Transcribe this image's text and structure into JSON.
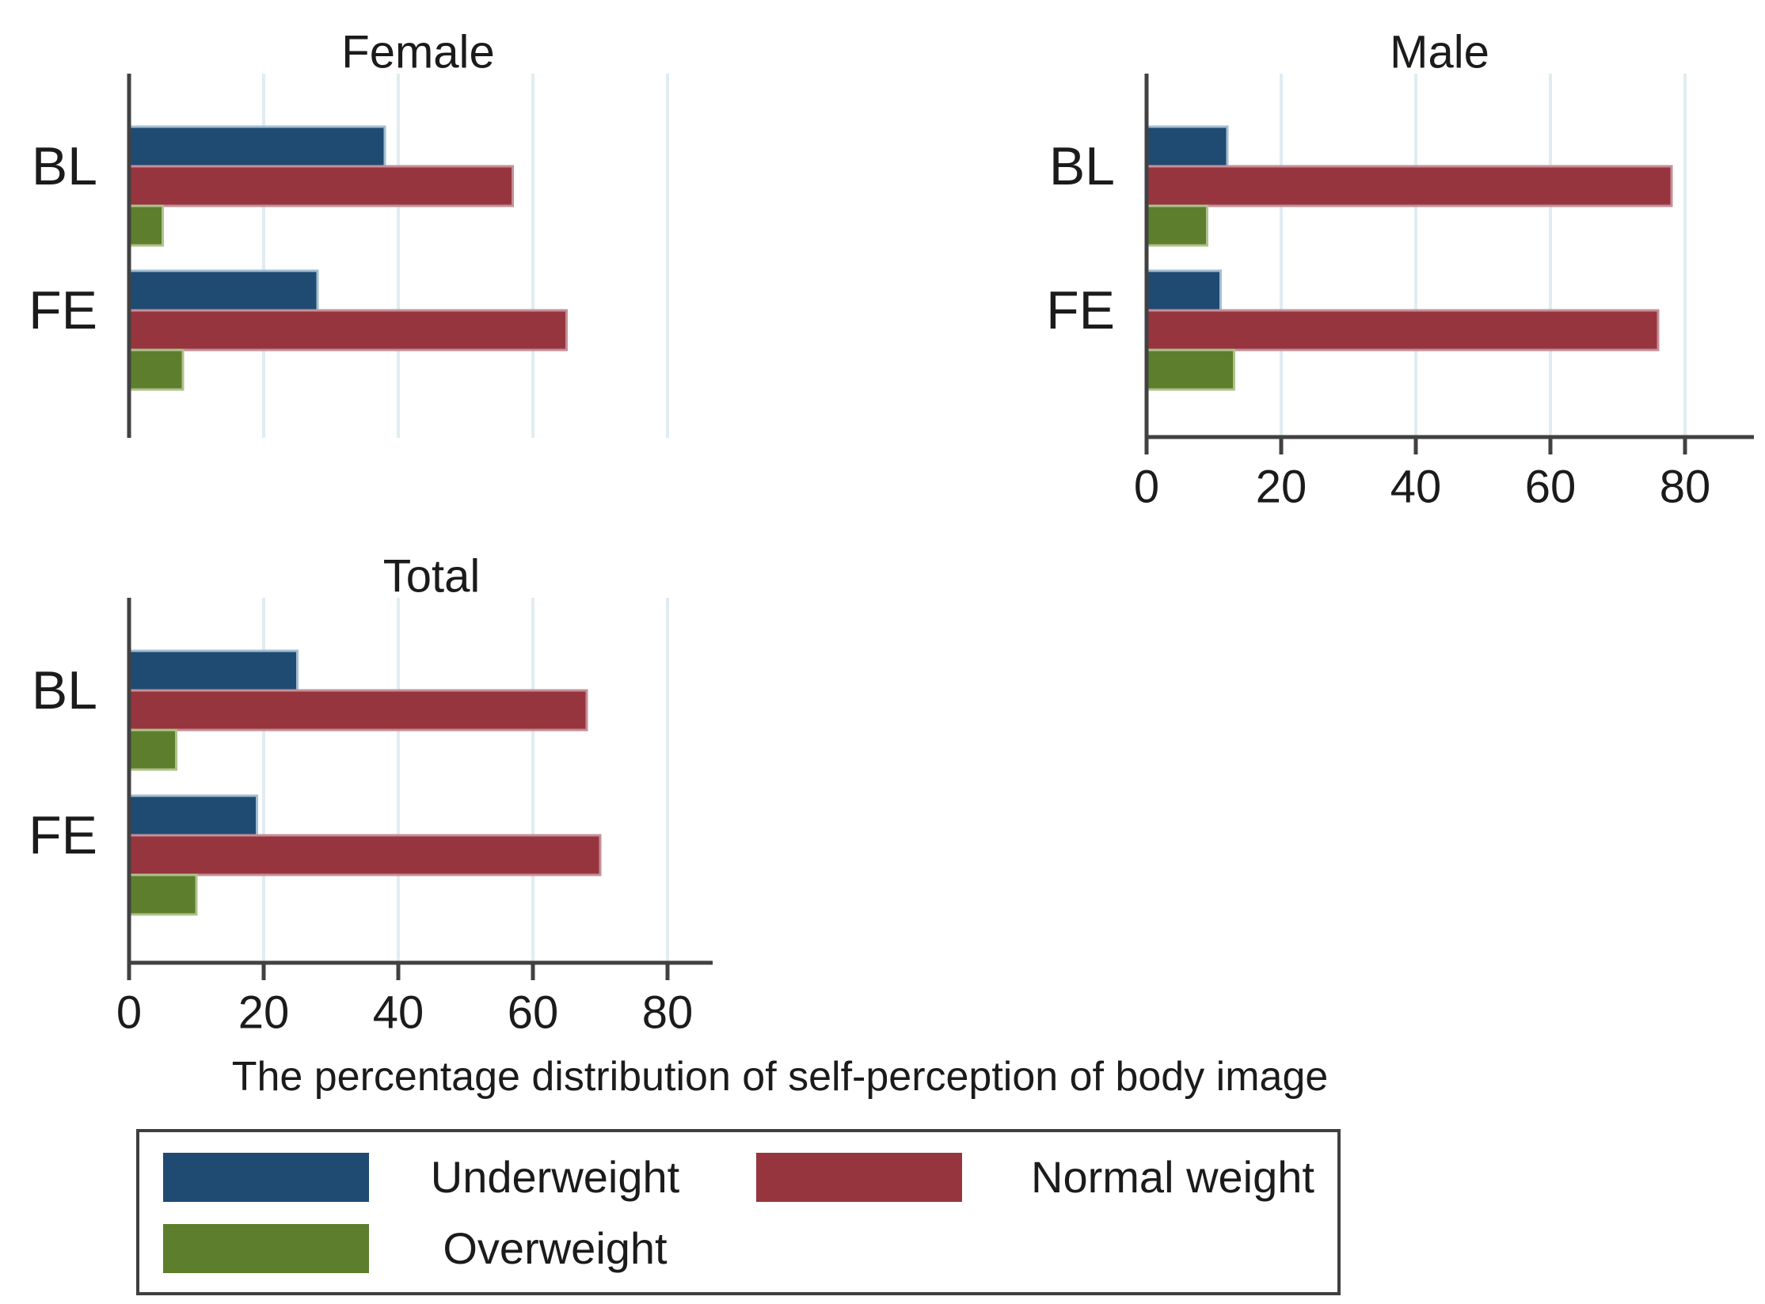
{
  "caption": "The percentage distribution of self-perception of body image",
  "chart_data": {
    "type": "bar",
    "orientation": "horizontal",
    "x_ticks": [
      0,
      20,
      40,
      60,
      80
    ],
    "xlim": [
      0,
      87
    ],
    "grid": true,
    "legend_position": "bottom",
    "panels": [
      {
        "title": "Female",
        "categories": [
          "BL",
          "FE"
        ],
        "x_axis_labels_shown": false,
        "series": [
          {
            "name": "Underweight",
            "values": [
              38,
              28
            ]
          },
          {
            "name": "Normal weight",
            "values": [
              57,
              65
            ]
          },
          {
            "name": "Overweight",
            "values": [
              5,
              8
            ]
          }
        ]
      },
      {
        "title": "Male",
        "categories": [
          "BL",
          "FE"
        ],
        "x_axis_labels_shown": true,
        "series": [
          {
            "name": "Underweight",
            "values": [
              12,
              11
            ]
          },
          {
            "name": "Normal weight",
            "values": [
              78,
              76
            ]
          },
          {
            "name": "Overweight",
            "values": [
              9,
              13
            ]
          }
        ]
      },
      {
        "title": "Total",
        "categories": [
          "BL",
          "FE"
        ],
        "x_axis_labels_shown": true,
        "series": [
          {
            "name": "Underweight",
            "values": [
              25,
              19
            ]
          },
          {
            "name": "Normal weight",
            "values": [
              68,
              70
            ]
          },
          {
            "name": "Overweight",
            "values": [
              7,
              10
            ]
          }
        ]
      }
    ],
    "series_colors": {
      "Underweight": {
        "fill": "#1f4b72",
        "edge": "#a3bdd1"
      },
      "Normal weight": {
        "fill": "#97353f",
        "edge": "#c58f97"
      },
      "Overweight": {
        "fill": "#5d7e2d",
        "edge": "#afc28c"
      }
    }
  },
  "legend": {
    "items": [
      {
        "label": "Underweight",
        "color": "#1f4b72"
      },
      {
        "label": "Normal weight",
        "color": "#97353f"
      },
      {
        "label": "Overweight",
        "color": "#5d7e2d"
      }
    ]
  },
  "style_colors": {
    "axis": "#414141",
    "grid": "#e0ecf2",
    "text": "#1b1b1b",
    "background": "#ffffff"
  }
}
